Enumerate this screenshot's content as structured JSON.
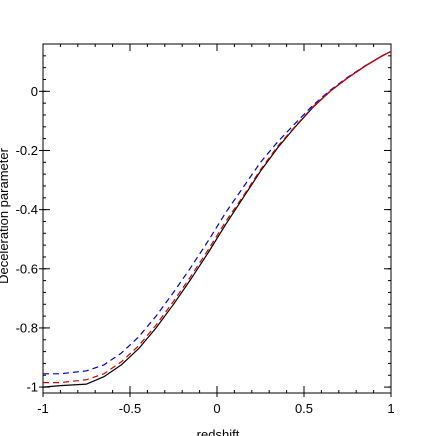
{
  "chart_data": {
    "type": "line",
    "title": "",
    "xlabel": "redshift",
    "ylabel": "Deceleration parameter",
    "xlim": [
      -1,
      1
    ],
    "ylim": [
      -1.02,
      0.16
    ],
    "x_ticks": [
      -1,
      -0.5,
      0,
      0.5,
      1
    ],
    "x_tick_labels": [
      "-1",
      "-0.5",
      "0",
      "0.5",
      "1"
    ],
    "y_ticks": [
      -1,
      -0.8,
      -0.6,
      -0.4,
      -0.2,
      0
    ],
    "y_tick_labels": [
      "-1",
      "-0.8",
      "-0.6",
      "-0.4",
      "-0.2",
      "0"
    ],
    "grid": false,
    "legend": "none",
    "series": [
      {
        "color": "#000000",
        "dash": "solid",
        "x": [
          -1,
          -0.9,
          -0.75,
          -0.65,
          -0.55,
          -0.45,
          -0.35,
          -0.25,
          -0.15,
          -0.05,
          0.05,
          0.15,
          0.25,
          0.35,
          0.45,
          0.55,
          0.65,
          0.75,
          0.85,
          0.95,
          1
        ],
        "y": [
          -1.0,
          -0.995,
          -0.99,
          -0.965,
          -0.925,
          -0.87,
          -0.8,
          -0.72,
          -0.635,
          -0.545,
          -0.45,
          -0.36,
          -0.27,
          -0.19,
          -0.12,
          -0.055,
          0.0,
          0.045,
          0.085,
          0.12,
          0.135
        ]
      },
      {
        "color": "#cc0000",
        "dash": "dashed",
        "x": [
          -1,
          -0.9,
          -0.75,
          -0.65,
          -0.55,
          -0.45,
          -0.35,
          -0.25,
          -0.15,
          -0.05,
          0.05,
          0.15,
          0.25,
          0.35,
          0.45,
          0.55,
          0.65,
          0.75,
          0.85,
          0.95,
          1
        ],
        "y": [
          -0.985,
          -0.985,
          -0.975,
          -0.955,
          -0.915,
          -0.86,
          -0.79,
          -0.71,
          -0.625,
          -0.535,
          -0.44,
          -0.355,
          -0.265,
          -0.185,
          -0.118,
          -0.053,
          0.0,
          0.045,
          0.085,
          0.12,
          0.135
        ]
      },
      {
        "color": "#0000cc",
        "dash": "dashed",
        "x": [
          -1,
          -0.9,
          -0.75,
          -0.65,
          -0.55,
          -0.45,
          -0.35,
          -0.25,
          -0.15,
          -0.05,
          0.05,
          0.15,
          0.25,
          0.35,
          0.45,
          0.55,
          0.65,
          0.75,
          0.85,
          0.95,
          1
        ],
        "y": [
          -0.955,
          -0.955,
          -0.945,
          -0.925,
          -0.885,
          -0.83,
          -0.76,
          -0.68,
          -0.595,
          -0.505,
          -0.41,
          -0.325,
          -0.24,
          -0.17,
          -0.108,
          -0.048,
          0.003,
          0.047,
          0.086,
          0.12,
          0.135
        ]
      },
      {
        "color": "#cc0000",
        "dash": "solid",
        "x": [
          0.55,
          0.65,
          0.75,
          0.85,
          0.95,
          1
        ],
        "y": [
          -0.053,
          0.0,
          0.045,
          0.085,
          0.12,
          0.135
        ]
      }
    ]
  }
}
